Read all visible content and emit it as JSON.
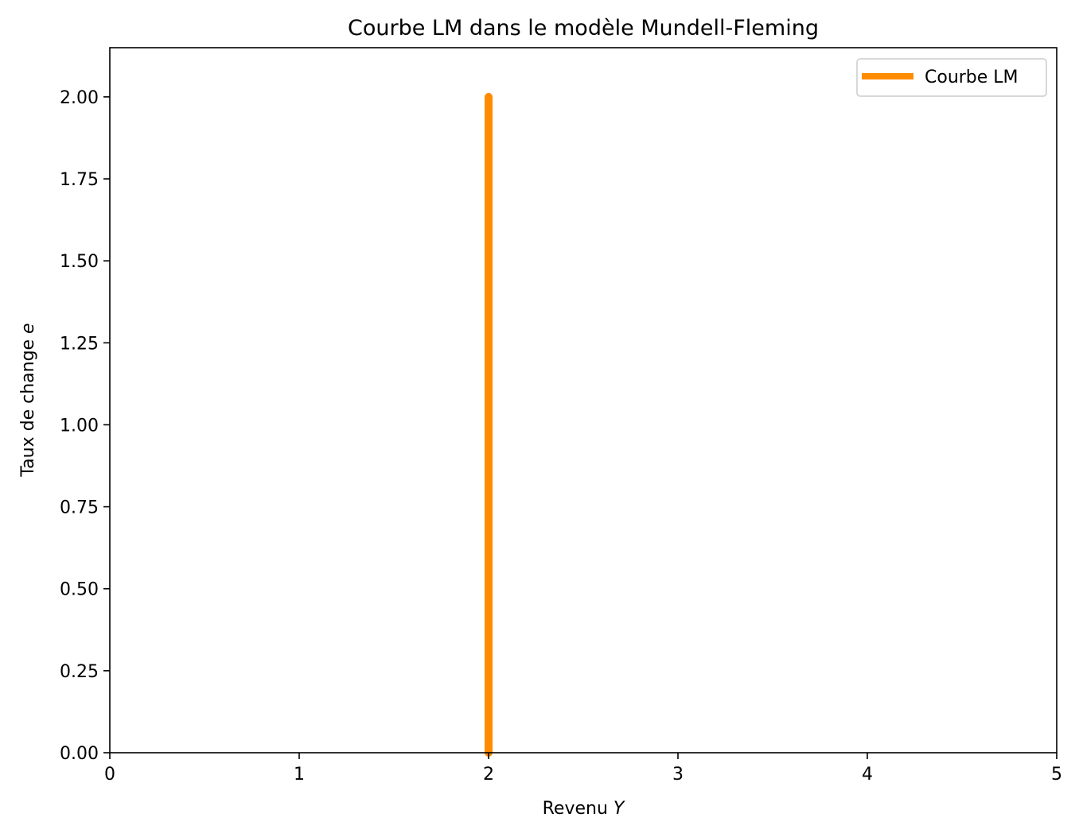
{
  "chart_data": {
    "type": "line",
    "title": "Courbe LM dans le modèle Mundell-Fleming",
    "xlabel_prefix": "Revenu ",
    "xlabel_var": "Y",
    "ylabel_prefix": "Taux de change ",
    "ylabel_var": "e",
    "xlim": [
      0,
      5
    ],
    "ylim": [
      0,
      2.15
    ],
    "xticks": [
      0,
      1,
      2,
      3,
      4,
      5
    ],
    "xtick_labels": [
      "0",
      "1",
      "2",
      "3",
      "4",
      "5"
    ],
    "yticks": [
      0,
      0.25,
      0.5,
      0.75,
      1.0,
      1.25,
      1.5,
      1.75,
      2.0
    ],
    "ytick_labels": [
      "0.00",
      "0.25",
      "0.50",
      "0.75",
      "1.00",
      "1.25",
      "1.50",
      "1.75",
      "2.00"
    ],
    "grid": false,
    "legend_position": "top-right",
    "series": [
      {
        "name": "Courbe LM",
        "color": "#ff8c00",
        "x": [
          2,
          2
        ],
        "y": [
          0,
          2
        ]
      }
    ]
  }
}
